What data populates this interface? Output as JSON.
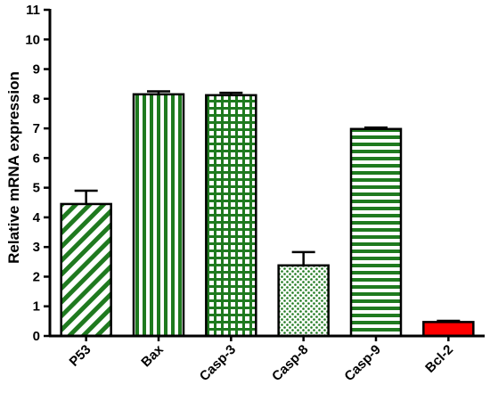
{
  "chart_data": {
    "type": "bar",
    "title": "",
    "xlabel": "",
    "ylabel": "Relative mRNA expression",
    "ylim": [
      0,
      11
    ],
    "yticks": [
      0,
      1,
      2,
      3,
      4,
      5,
      6,
      7,
      8,
      9,
      10,
      11
    ],
    "grid": false,
    "legend": "none",
    "categories": [
      "P53",
      "Bax",
      "Casp-3",
      "Casp-8",
      "Casp-9",
      "Bcl-2"
    ],
    "values": [
      4.45,
      8.15,
      8.12,
      2.38,
      6.98,
      0.47
    ],
    "errors": [
      0.45,
      0.1,
      0.08,
      0.45,
      0.05,
      0.04
    ],
    "patterns": [
      "diagonal-stripes",
      "vertical-stripes",
      "grid",
      "dots",
      "horizontal-stripes",
      "solid"
    ],
    "colors": {
      "pattern": "#1f7a1f",
      "bar_outline": "#000000",
      "solid_fill": "#ff0000",
      "axis": "#000000"
    }
  }
}
